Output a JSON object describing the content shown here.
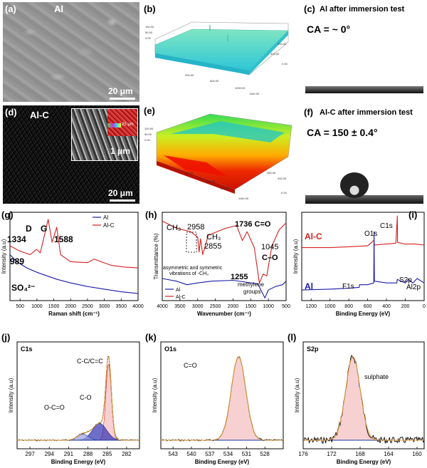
{
  "panel_a": {
    "letter": "(a)",
    "label": "Al",
    "scale": "20 μm"
  },
  "panel_b": {
    "letter": "(b)"
  },
  "panel_c": {
    "letter": "(c)",
    "title": "Al after immersion test",
    "ca": "CA = ~ 0°"
  },
  "panel_d": {
    "letter": "(d)",
    "label": "Al-C",
    "scale": "20 μm",
    "inset_scale": "1 μm",
    "eds_scale": "25 μm"
  },
  "panel_e": {
    "letter": "(e)"
  },
  "panel_f": {
    "letter": "(f)",
    "title": "Al-C after immersion test",
    "ca": "CA = 150 ± 0.4°"
  },
  "colors": {
    "al": "#1a1aa8",
    "alc": "#d42020",
    "fill": "#f6c9c9",
    "env": "#e8a040"
  },
  "chart_data": [
    {
      "panel": "(g)",
      "type": "line",
      "title": "",
      "xlabel": "Raman shift (cm⁻¹)",
      "ylabel": "Intensity (a.u)",
      "xlim": [
        200,
        4000
      ],
      "xticks": [
        "500",
        "1000",
        "1500",
        "2000",
        "2500",
        "3000",
        "3500",
        "4000"
      ],
      "legend": [
        "Al",
        "Al-C"
      ],
      "annotations": [
        "D",
        "G",
        "1334",
        "1588",
        "989",
        "SO₄²⁻"
      ],
      "series": [
        {
          "name": "Al-C",
          "x": [
            200,
            500,
            800,
            989,
            1100,
            1334,
            1450,
            1588,
            1700,
            2000,
            2500,
            2700,
            2900,
            3200,
            3600,
            4000
          ],
          "y": [
            0.62,
            0.56,
            0.52,
            0.58,
            0.54,
            0.92,
            0.66,
            0.83,
            0.52,
            0.44,
            0.43,
            0.47,
            0.44,
            0.4,
            0.38,
            0.37
          ]
        },
        {
          "name": "Al",
          "x": [
            200,
            400,
            700,
            1000,
            1300,
            1600,
            2000,
            2500,
            3000,
            3500,
            4000
          ],
          "y": [
            0.52,
            0.44,
            0.37,
            0.32,
            0.28,
            0.24,
            0.2,
            0.16,
            0.13,
            0.1,
            0.08
          ]
        }
      ]
    },
    {
      "panel": "(h)",
      "type": "line",
      "xlabel": "Wavenumber (cm⁻¹)",
      "ylabel": "Transmittance (%)",
      "xlim": [
        4000,
        500
      ],
      "xticks": [
        "4000",
        "3500",
        "3000",
        "2500",
        "2000",
        "1500",
        "1000",
        "500"
      ],
      "legend": [
        "Al",
        "Al-C"
      ],
      "annotations": [
        "CH₃",
        "2958",
        "CH₃",
        "2855",
        "1736 C=O",
        "1045",
        "C–O",
        "1255",
        "asymmetric and symmetric",
        "vibrations of -CH₃",
        "methylene",
        "groups"
      ],
      "series": [
        {
          "name": "Al-C",
          "x": [
            4000,
            3600,
            3200,
            3000,
            2958,
            2920,
            2855,
            2700,
            2200,
            1900,
            1736,
            1600,
            1400,
            1255,
            1150,
            1045,
            900,
            700,
            500
          ],
          "y": [
            0.9,
            0.82,
            0.78,
            0.72,
            0.55,
            0.7,
            0.52,
            0.74,
            0.82,
            0.85,
            0.68,
            0.78,
            0.6,
            0.2,
            0.3,
            0.28,
            0.62,
            0.8,
            0.88
          ]
        },
        {
          "name": "Al",
          "x": [
            4000,
            3600,
            3300,
            3000,
            2600,
            2000,
            1650,
            1300,
            1100,
            1000,
            800,
            600,
            500
          ],
          "y": [
            0.25,
            0.22,
            0.18,
            0.2,
            0.22,
            0.23,
            0.21,
            0.19,
            0.03,
            0.12,
            0.16,
            0.18,
            0.22
          ]
        }
      ]
    },
    {
      "panel": "(i)",
      "type": "line",
      "xlabel": "Binding Energy (eV)",
      "ylabel": "Intensity (a.u)",
      "xlim": [
        1300,
        0
      ],
      "xticks": [
        "1200",
        "1000",
        "800",
        "600",
        "400",
        "200",
        "0"
      ],
      "series_labels": [
        "Al-C",
        "Al"
      ],
      "annotations": [
        "C1s",
        "O1s",
        "F1s",
        "S2p",
        "Al2p"
      ],
      "series": [
        {
          "name": "Al-C",
          "x": [
            1300,
            1000,
            800,
            600,
            535,
            532,
            530,
            400,
            300,
            285,
            283,
            200,
            100,
            0
          ],
          "y": [
            0.6,
            0.6,
            0.61,
            0.62,
            0.68,
            0.66,
            0.63,
            0.64,
            0.65,
            0.96,
            0.66,
            0.64,
            0.64,
            0.63
          ]
        },
        {
          "name": "Al",
          "x": [
            1300,
            1000,
            800,
            690,
            686,
            600,
            535,
            532,
            528,
            400,
            290,
            285,
            200,
            168,
            120,
            75,
            0
          ],
          "y": [
            0.12,
            0.13,
            0.14,
            0.15,
            0.18,
            0.18,
            0.2,
            0.78,
            0.22,
            0.2,
            0.2,
            0.24,
            0.2,
            0.24,
            0.2,
            0.25,
            0.2
          ]
        }
      ]
    },
    {
      "panel": "(j)",
      "type": "line",
      "title": "C1s",
      "xlabel": "Binding Energy (eV)",
      "ylabel": "Intensity (a.u)",
      "xlim": [
        299,
        280
      ],
      "xticks": [
        "297",
        "294",
        "291",
        "288",
        "285",
        "282"
      ],
      "annotations": [
        "C-C/C=C",
        "C-O",
        "O-C=O"
      ],
      "peaks": [
        {
          "name": "C-C/C=C",
          "center": 284.8,
          "fwhm": 1.0,
          "height": 1.0
        },
        {
          "name": "C-O",
          "center": 286.2,
          "fwhm": 2.6,
          "height": 0.22
        },
        {
          "name": "O-C=O",
          "center": 288.8,
          "fwhm": 2.0,
          "height": 0.08
        }
      ]
    },
    {
      "panel": "(k)",
      "type": "line",
      "title": "O1s",
      "xlabel": "Binding Energy (eV)",
      "ylabel": "Intensity (a.u)",
      "xlim": [
        545,
        525
      ],
      "xticks": [
        "543",
        "540",
        "537",
        "534",
        "531",
        "528"
      ],
      "annotations": [
        "C=O"
      ],
      "peaks": [
        {
          "name": "C=O",
          "center": 532.3,
          "fwhm": 2.8,
          "height": 1.0
        }
      ]
    },
    {
      "panel": "(l)",
      "type": "line",
      "title": "S2p",
      "xlabel": "Binding Energy (eV)",
      "ylabel": "Intensity (a.u)",
      "xlim": [
        176,
        159
      ],
      "xticks": [
        "176",
        "172",
        "168",
        "164",
        "160"
      ],
      "annotations": [
        "sulphate"
      ],
      "peaks": [
        {
          "name": "sulphate",
          "center": 169.0,
          "fwhm": 2.4,
          "height": 1.0
        }
      ]
    }
  ]
}
